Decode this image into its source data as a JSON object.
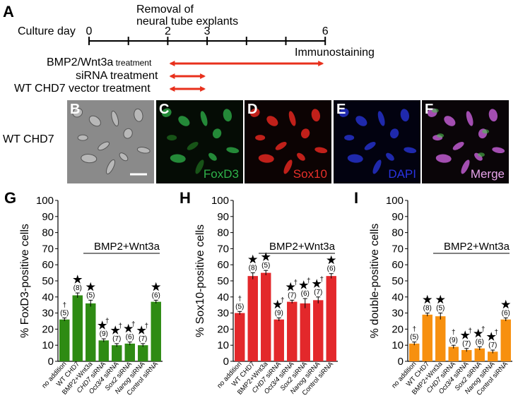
{
  "figure": {
    "panel_a": {
      "letter": "A",
      "culture_day_label": "Culture day",
      "removal_label_line1": "Removal of",
      "removal_label_line2": "neural tube explants",
      "ticks": [
        "0",
        "",
        "2",
        "3",
        "",
        "",
        "",
        "6"
      ],
      "tick_values": [
        0,
        1,
        2,
        3,
        4,
        5,
        6
      ],
      "immunostaining": "Immunostaining",
      "treatments": [
        {
          "main": "BMP2/Wnt3a",
          "suffix": " treatment",
          "start": 2,
          "end": 6
        },
        {
          "main": "siRNA treatment",
          "suffix": "",
          "start": 2,
          "end": 3
        },
        {
          "main": "WT CHD7 vector treatment",
          "suffix": "",
          "start": 2,
          "end": 3
        }
      ],
      "arrow_color": "#e8301c"
    },
    "row_label": "WT CHD7",
    "micrographs": [
      {
        "letter": "B",
        "caption": "",
        "bg": "#8a8a8a",
        "kind": "phase",
        "caption_color": ""
      },
      {
        "letter": "C",
        "caption": "FoxD3",
        "bg": "#050c05",
        "kind": "green",
        "caption_color": "#2fb34a"
      },
      {
        "letter": "D",
        "caption": "Sox10",
        "bg": "#0c0303",
        "kind": "red",
        "caption_color": "#e8302a"
      },
      {
        "letter": "E",
        "caption": "DAPI",
        "bg": "#020210",
        "kind": "blue",
        "caption_color": "#2a33e0"
      },
      {
        "letter": "F",
        "caption": "Merge",
        "bg": "#0a0508",
        "kind": "merge",
        "caption_color": "#e7a3ea"
      }
    ]
  },
  "chart_data": [
    {
      "panel": "G",
      "type": "bar",
      "ylabel": "% FoxD3-positive cells",
      "ylim": [
        0,
        100
      ],
      "yticks": [
        0,
        10,
        20,
        30,
        40,
        50,
        60,
        70,
        80,
        90,
        100
      ],
      "annotation": "BMP2+Wnt3a",
      "color": "#2e8b13",
      "categories": [
        "no addition",
        "WT CHD7",
        "BMP2+Wnt3a",
        "CHD7 siRNA",
        "Oct3/4 siRNA",
        "Sox2 siRNA",
        "Nanog siRNA",
        "Control siRNA"
      ],
      "italic_prefix": [
        "",
        "",
        "",
        "CHD7",
        "Oct3/4",
        "Sox2",
        "Nanog",
        ""
      ],
      "values": [
        26,
        41,
        36,
        13,
        10,
        11,
        10,
        37
      ],
      "errors": [
        1,
        1.5,
        2,
        1,
        1,
        1,
        1,
        1
      ],
      "n": [
        "(5)",
        "(8)",
        "(5)",
        "(9)",
        "(7)",
        "(6)",
        "(7)",
        "(6)"
      ],
      "marks": [
        "†",
        "★",
        "★",
        "★†",
        "★†",
        "★†",
        "★†",
        "★"
      ]
    },
    {
      "panel": "H",
      "type": "bar",
      "ylabel": "% Sox10-positive cells",
      "ylim": [
        0,
        100
      ],
      "yticks": [
        0,
        10,
        20,
        30,
        40,
        50,
        60,
        70,
        80,
        90,
        100
      ],
      "annotation": "BMP2+Wnt3a",
      "color": "#e3282b",
      "categories": [
        "no addition",
        "WT CHD7",
        "BMP2+Wnt3a",
        "CHD7 siRNA",
        "Oct3/4 siRNA",
        "Sox2 siRNA",
        "Nanog siRNA",
        "Control siRNA"
      ],
      "italic_prefix": [
        "",
        "",
        "",
        "CHD7",
        "Oct3/4",
        "Sox2",
        "Nanog",
        ""
      ],
      "values": [
        30,
        53,
        55,
        26,
        37,
        36,
        38,
        53
      ],
      "errors": [
        1,
        2,
        1.5,
        1,
        1,
        3,
        2,
        1.5
      ],
      "n": [
        "(5)",
        "(8)",
        "(5)",
        "(9)",
        "(7)",
        "(6)",
        "(7)",
        "(6)"
      ],
      "marks": [
        "†",
        "★",
        "★",
        "★†",
        "★†",
        "★†",
        "★†",
        "★"
      ]
    },
    {
      "panel": "I",
      "type": "bar",
      "ylabel": "% double-positive cells",
      "ylim": [
        0,
        100
      ],
      "yticks": [
        0,
        10,
        20,
        30,
        40,
        50,
        60,
        70,
        80,
        90,
        100
      ],
      "annotation": "BMP2+Wnt3a",
      "color": "#f7900f",
      "categories": [
        "no addition",
        "WT CHD7",
        "BMP2+Wnt3a",
        "CHD7 siRNA",
        "Oct3/4 siRNA",
        "Sox2 siRNA",
        "Nanog siRNA",
        "Control siRNA"
      ],
      "italic_prefix": [
        "",
        "",
        "",
        "CHD7",
        "Oct3/4",
        "Sox2",
        "Nanog",
        ""
      ],
      "values": [
        11,
        29,
        28,
        9,
        7,
        8,
        6,
        26
      ],
      "errors": [
        1,
        1,
        2,
        1,
        1,
        1,
        1,
        1
      ],
      "n": [
        "(5)",
        "(8)",
        "(5)",
        "(9)",
        "(7)",
        "(6)",
        "(7)",
        "(6)"
      ],
      "marks": [
        "†",
        "★",
        "★",
        "†",
        "★†",
        "★†",
        "★†",
        "★"
      ]
    }
  ]
}
